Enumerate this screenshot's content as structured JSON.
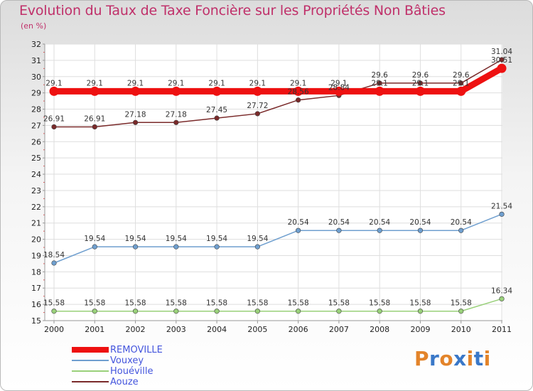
{
  "title": "Evolution du Taux de Taxe Foncière sur les Propriétés Non Bâties",
  "unit": "(en %)",
  "brand": {
    "letters": [
      "P",
      "r",
      "o",
      "x",
      "i",
      "t",
      "i"
    ],
    "colors": [
      "#e3842a",
      "#3a78c8",
      "#e3842a",
      "#3a78c8",
      "#e3842a",
      "#3a78c8",
      "#e3842a"
    ]
  },
  "chart_data": {
    "type": "line",
    "x": [
      "2000",
      "2001",
      "2002",
      "2003",
      "2004",
      "2005",
      "2006",
      "2007",
      "2008",
      "2009",
      "2010",
      "2011"
    ],
    "ylim": [
      15,
      32
    ],
    "yticks": [
      15,
      16,
      17,
      18,
      19,
      20,
      21,
      22,
      23,
      24,
      25,
      26,
      27,
      28,
      29,
      30,
      31,
      32
    ],
    "grid": true,
    "legend_position": "bottom-left",
    "series": [
      {
        "name": "REMOVILLE",
        "color": "#ee1111",
        "values": [
          29.1,
          29.1,
          29.1,
          29.1,
          29.1,
          29.1,
          29.1,
          29.1,
          29.1,
          29.1,
          29.1,
          30.51
        ],
        "labels": [
          "29.1",
          "29.1",
          "29.1",
          "29.1",
          "29.1",
          "29.1",
          "29.1",
          "29.1",
          "29.1",
          "29.1",
          "29.1",
          "30.51"
        ]
      },
      {
        "name": "Vouxey",
        "color": "#6f9fcf",
        "values": [
          18.54,
          19.54,
          19.54,
          19.54,
          19.54,
          19.54,
          20.54,
          20.54,
          20.54,
          20.54,
          20.54,
          21.54
        ],
        "labels": [
          "18.54",
          "19.54",
          "19.54",
          "19.54",
          "19.54",
          "19.54",
          "20.54",
          "20.54",
          "20.54",
          "20.54",
          "20.54",
          "21.54"
        ]
      },
      {
        "name": "Houéville",
        "color": "#99d07a",
        "values": [
          15.58,
          15.58,
          15.58,
          15.58,
          15.58,
          15.58,
          15.58,
          15.58,
          15.58,
          15.58,
          15.58,
          16.34
        ],
        "labels": [
          "15.58",
          "15.58",
          "15.58",
          "15.58",
          "15.58",
          "15.58",
          "15.58",
          "15.58",
          "15.58",
          "15.58",
          "15.58",
          "16.34"
        ]
      },
      {
        "name": "Aouze",
        "color": "#7a2a2a",
        "values": [
          26.91,
          26.91,
          27.18,
          27.18,
          27.45,
          27.72,
          28.56,
          28.84,
          29.6,
          29.6,
          29.6,
          31.04
        ],
        "labels": [
          "26.91",
          "26.91",
          "27.18",
          "27.18",
          "27.45",
          "27.72",
          "28.56",
          "28.84",
          "29.6",
          "29.6",
          "29.6",
          "31.04"
        ]
      }
    ]
  }
}
